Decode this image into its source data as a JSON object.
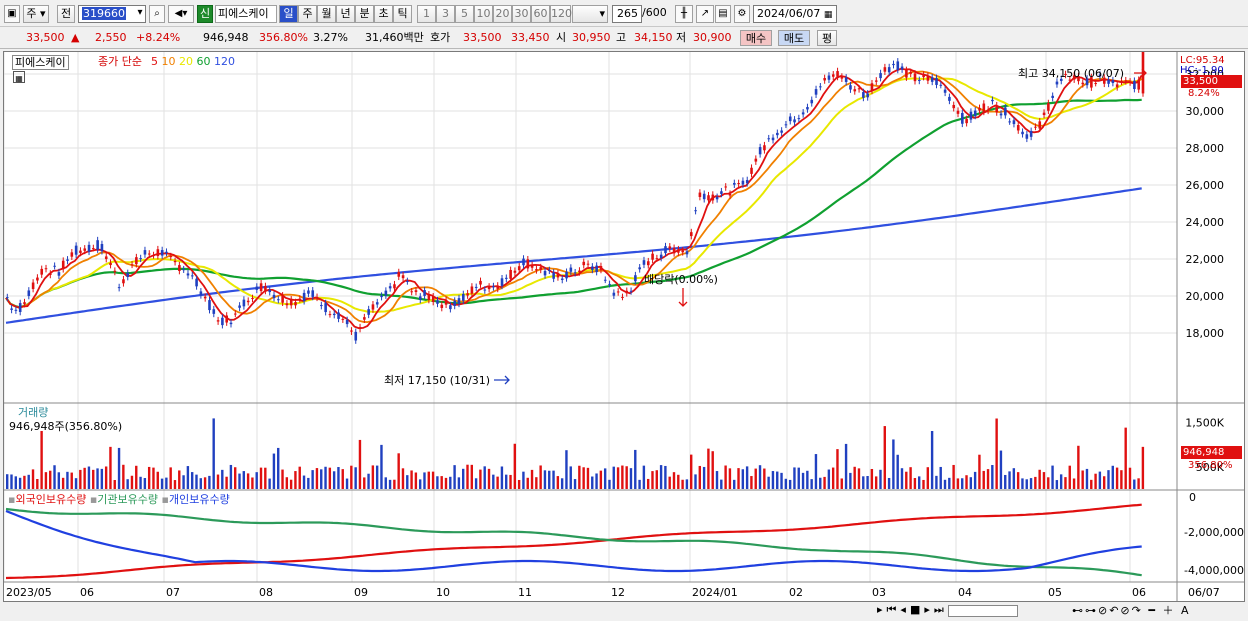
{
  "toolbar": {
    "market": "주",
    "prev": "전",
    "code": "319660",
    "name_badge": "신",
    "stock_name": "피에스케이",
    "periods": [
      "일",
      "주",
      "월",
      "년",
      "분",
      "초",
      "틱"
    ],
    "active_period": "일",
    "intervals": [
      "1",
      "3",
      "5",
      "10",
      "20",
      "30",
      "60",
      "120"
    ],
    "count": "265",
    "count_total": "/600",
    "date": "2024/06/07"
  },
  "quote": {
    "price": "33,500",
    "arrow": "▲",
    "change": "2,550",
    "change_pct": "+8.24%",
    "volume": "946,948",
    "volume_pct": "356.80%",
    "turnover": "3.27%",
    "amount": "31,460백만",
    "ask_label": "호가",
    "ask": "33,500",
    "bid": "33,450",
    "open_label": "시",
    "open": "30,950",
    "high_label": "고",
    "high": "34,150",
    "low_label": "저",
    "low": "30,900",
    "buy": "매수",
    "sell": "매도",
    "avg": "평"
  },
  "price_panel": {
    "title": "피에스케이",
    "ma_label": "종가 단순",
    "ma": [
      {
        "p": "5",
        "color": "#e01010"
      },
      {
        "p": "10",
        "color": "#f08000"
      },
      {
        "p": "20",
        "color": "#e8e800"
      },
      {
        "p": "60",
        "color": "#10a030"
      },
      {
        "p": "120",
        "color": "#3050e0"
      }
    ],
    "lc": "LC:95.34",
    "hc": "HC:-1.90",
    "last_price": "33,500",
    "last_pct": "8.24%",
    "y_ticks": [
      "32,000",
      "30,000",
      "28,000",
      "26,000",
      "24,000",
      "22,000",
      "20,000",
      "18,000"
    ],
    "high_label": "최고 34,150 (06/07)",
    "low_label": "최저 17,150 (10/31)",
    "dividend": "배당락(0.00%)"
  },
  "volume_panel": {
    "title": "거래량",
    "value": "946,948주(356.80%)",
    "y_ticks": [
      "1,500K",
      "500K"
    ],
    "last": "946,948",
    "last_pct": "356.80%"
  },
  "holder_panel": {
    "series": [
      {
        "name": "외국인보유수량",
        "color": "#e01010"
      },
      {
        "name": "기관보유수량",
        "color": "#2c9a5a"
      },
      {
        "name": "개인보유수량",
        "color": "#2040e0"
      }
    ],
    "y_ticks": [
      "0",
      "-2,000,000",
      "-4,000,000"
    ]
  },
  "x_axis": {
    "labels": [
      "2023/05",
      "06",
      "07",
      "08",
      "09",
      "10",
      "11",
      "12",
      "2024/01",
      "02",
      "03",
      "04",
      "05",
      "06"
    ],
    "last": "06/07"
  }
}
